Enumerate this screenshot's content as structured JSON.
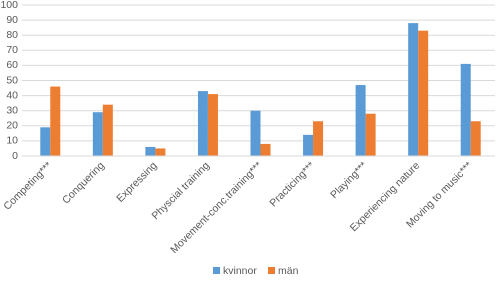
{
  "chart_data": {
    "type": "bar",
    "categories": [
      "Competing***",
      "Conquering",
      "Expressing",
      "Physcial training",
      "Movement-conc.training***",
      "Practicing***",
      "Playing***",
      "Experiencing nature",
      "Moving to music***"
    ],
    "series": [
      {
        "name": "kvinnor",
        "color": "#5b9bd5",
        "values": [
          19,
          29,
          6,
          43,
          30,
          14,
          47,
          88,
          61
        ]
      },
      {
        "name": "män",
        "color": "#ed7d31",
        "values": [
          46,
          34,
          5,
          41,
          8,
          23,
          28,
          83,
          23
        ]
      }
    ],
    "ylim": [
      0,
      100
    ],
    "yticks": [
      0,
      10,
      20,
      30,
      40,
      50,
      60,
      70,
      80,
      90,
      100
    ],
    "grid": true,
    "legend": "bottom"
  }
}
